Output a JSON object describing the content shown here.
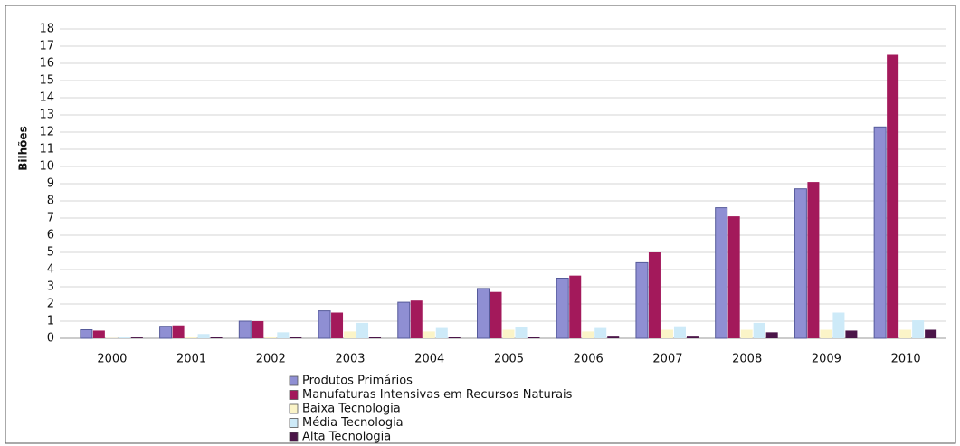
{
  "chart_data": {
    "type": "bar",
    "y_label": "Bilhões",
    "categories": [
      "2000",
      "2001",
      "2002",
      "2003",
      "2004",
      "2005",
      "2006",
      "2007",
      "2008",
      "2009",
      "2010"
    ],
    "series": [
      {
        "name": "Produtos Primários",
        "color": "#8f8fd3",
        "values": [
          0.5,
          0.7,
          1.0,
          1.6,
          2.1,
          2.9,
          3.5,
          4.4,
          7.6,
          8.7,
          12.3
        ]
      },
      {
        "name": "Manufaturas Intensivas em Recursos Naturais",
        "color": "#a3195b",
        "values": [
          0.45,
          0.75,
          1.0,
          1.5,
          2.2,
          2.7,
          3.65,
          5.0,
          7.1,
          9.1,
          16.5
        ]
      },
      {
        "name": "Baixa Tecnologia",
        "color": "#fbf4c8",
        "values": [
          0.02,
          0.05,
          0.1,
          0.4,
          0.4,
          0.5,
          0.4,
          0.5,
          0.5,
          0.5,
          0.5
        ]
      },
      {
        "name": "Média Tecnologia",
        "color": "#cdeaf8",
        "values": [
          0.05,
          0.25,
          0.35,
          0.9,
          0.6,
          0.65,
          0.6,
          0.7,
          0.9,
          1.5,
          1.05
        ]
      },
      {
        "name": "Alta Tecnologia",
        "color": "#4b1548",
        "values": [
          0.05,
          0.1,
          0.1,
          0.1,
          0.1,
          0.1,
          0.15,
          0.15,
          0.35,
          0.45,
          0.5
        ]
      }
    ],
    "ylim": [
      0,
      18
    ],
    "yticks": [
      0,
      1,
      2,
      3,
      4,
      5,
      6,
      7,
      8,
      9,
      10,
      11,
      12,
      13,
      14,
      15,
      16,
      17,
      18
    ],
    "grid": true
  }
}
